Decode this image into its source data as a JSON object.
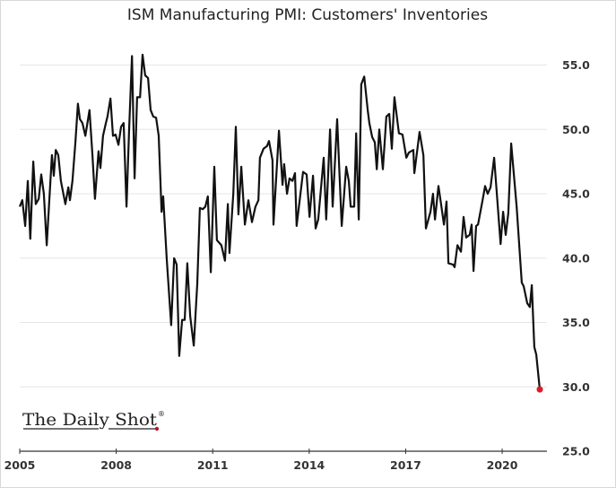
{
  "chart_data": {
    "type": "line",
    "title": "ISM Manufacturing PMI: Customers' Inventories",
    "xlabel": "",
    "ylabel": "",
    "xlim": [
      2005,
      2021.5
    ],
    "ylim": [
      25,
      56
    ],
    "x_ticks": [
      "2005",
      "2008",
      "2011",
      "2014",
      "2017",
      "2020"
    ],
    "x_tick_values": [
      2005,
      2008,
      2011,
      2014,
      2017,
      2020
    ],
    "y_ticks": [
      "25.0",
      "30.0",
      "35.0",
      "40.0",
      "45.0",
      "50.0",
      "55.0"
    ],
    "y_tick_values": [
      25,
      30,
      35,
      40,
      45,
      50,
      55
    ],
    "grid": "horizontal",
    "line_color": "#111111",
    "last_point_color": "#e0192b",
    "series": [
      {
        "name": "Customers' Inventories",
        "x": [
          2005.0,
          2005.08,
          2005.17,
          2005.25,
          2005.33,
          2005.42,
          2005.5,
          2005.59,
          2005.67,
          2005.75,
          2005.84,
          2006.0,
          2006.06,
          2006.12,
          2006.2,
          2006.28,
          2006.42,
          2006.51,
          2006.56,
          2006.64,
          2006.73,
          2006.81,
          2006.87,
          2006.95,
          2007.04,
          2007.17,
          2007.26,
          2007.34,
          2007.45,
          2007.51,
          2007.59,
          2007.68,
          2007.73,
          2007.82,
          2007.9,
          2007.98,
          2008.07,
          2008.15,
          2008.23,
          2008.32,
          2008.4,
          2008.49,
          2008.57,
          2008.65,
          2008.74,
          2008.82,
          2008.9,
          2008.99,
          2009.07,
          2009.15,
          2009.24,
          2009.32,
          2009.41,
          2009.46,
          2009.57,
          2009.71,
          2009.8,
          2009.88,
          2009.96,
          2010.05,
          2010.13,
          2010.21,
          2010.3,
          2010.41,
          2010.52,
          2010.6,
          2010.69,
          2010.77,
          2010.85,
          2010.94,
          2011.05,
          2011.13,
          2011.27,
          2011.38,
          2011.47,
          2011.52,
          2011.64,
          2011.72,
          2011.8,
          2011.89,
          2012.0,
          2012.11,
          2012.22,
          2012.33,
          2012.42,
          2012.47,
          2012.58,
          2012.69,
          2012.75,
          2012.86,
          2012.89,
          2013.06,
          2013.17,
          2013.22,
          2013.31,
          2013.39,
          2013.48,
          2013.56,
          2013.61,
          2013.81,
          2013.92,
          2014.01,
          2014.12,
          2014.2,
          2014.28,
          2014.45,
          2014.53,
          2014.65,
          2014.73,
          2014.87,
          2015.01,
          2015.15,
          2015.23,
          2015.29,
          2015.4,
          2015.46,
          2015.54,
          2015.62,
          2015.71,
          2015.82,
          2015.87,
          2015.96,
          2016.04,
          2016.1,
          2016.18,
          2016.29,
          2016.4,
          2016.49,
          2016.57,
          2016.65,
          2016.79,
          2016.9,
          2017.02,
          2017.1,
          2017.24,
          2017.27,
          2017.43,
          2017.55,
          2017.63,
          2017.77,
          2017.85,
          2017.91,
          2018.02,
          2018.1,
          2018.19,
          2018.27,
          2018.33,
          2018.47,
          2018.52,
          2018.61,
          2018.72,
          2018.8,
          2018.88,
          2018.99,
          2019.05,
          2019.11,
          2019.19,
          2019.25,
          2019.39,
          2019.47,
          2019.55,
          2019.64,
          2019.75,
          2019.95,
          2020.03,
          2020.11,
          2020.19,
          2020.28,
          2020.45,
          2020.61,
          2020.67,
          2020.78,
          2020.86,
          2020.92,
          2021.0,
          2021.06,
          2021.17
        ],
        "y": [
          44.0,
          44.5,
          42.5,
          46.0,
          41.5,
          47.5,
          44.2,
          44.6,
          46.5,
          45.0,
          41.0,
          48.0,
          46.4,
          48.4,
          48.0,
          46.0,
          44.2,
          45.5,
          44.5,
          46.0,
          49.0,
          52.0,
          50.8,
          50.5,
          49.5,
          51.5,
          48.0,
          44.6,
          48.3,
          47.0,
          49.5,
          50.5,
          51.0,
          52.4,
          49.5,
          49.6,
          48.8,
          50.2,
          50.5,
          44.0,
          50.0,
          55.7,
          46.2,
          52.5,
          52.5,
          55.8,
          54.2,
          54.0,
          51.5,
          51.0,
          50.9,
          49.5,
          43.6,
          44.8,
          40.0,
          34.8,
          40.0,
          39.5,
          32.4,
          35.2,
          35.2,
          39.6,
          35.5,
          33.2,
          38.0,
          43.9,
          43.8,
          44.0,
          44.8,
          38.9,
          47.1,
          41.4,
          41.0,
          39.8,
          44.2,
          40.4,
          45.0,
          50.2,
          43.4,
          47.1,
          42.6,
          44.5,
          42.8,
          44.0,
          44.5,
          47.8,
          48.5,
          48.7,
          49.1,
          47.6,
          42.6,
          49.9,
          45.7,
          47.3,
          45.0,
          46.2,
          46.0,
          46.6,
          42.5,
          46.7,
          46.5,
          43.2,
          46.4,
          42.3,
          43.0,
          47.8,
          43.0,
          50.0,
          44.0,
          50.8,
          42.5,
          47.1,
          46.0,
          44.0,
          44.0,
          49.7,
          43.0,
          53.5,
          54.1,
          51.5,
          50.5,
          49.4,
          49.0,
          46.9,
          50.0,
          46.9,
          51.0,
          51.2,
          48.5,
          52.5,
          49.7,
          49.6,
          47.8,
          48.2,
          48.4,
          46.6,
          49.8,
          48.0,
          42.3,
          43.6,
          45.0,
          43.0,
          45.6,
          44.2,
          42.6,
          44.4,
          39.6,
          39.5,
          39.3,
          41.0,
          40.5,
          43.2,
          41.6,
          41.8,
          42.6,
          39.0,
          42.5,
          42.6,
          44.5,
          45.6,
          45.0,
          45.5,
          47.8,
          41.1,
          43.6,
          41.8,
          43.5,
          48.9,
          44.0,
          38.1,
          37.8,
          36.5,
          36.2,
          37.9,
          33.1,
          32.5,
          29.8
        ]
      }
    ]
  },
  "logo": {
    "text": "The Daily Shot",
    "mark": "®"
  }
}
